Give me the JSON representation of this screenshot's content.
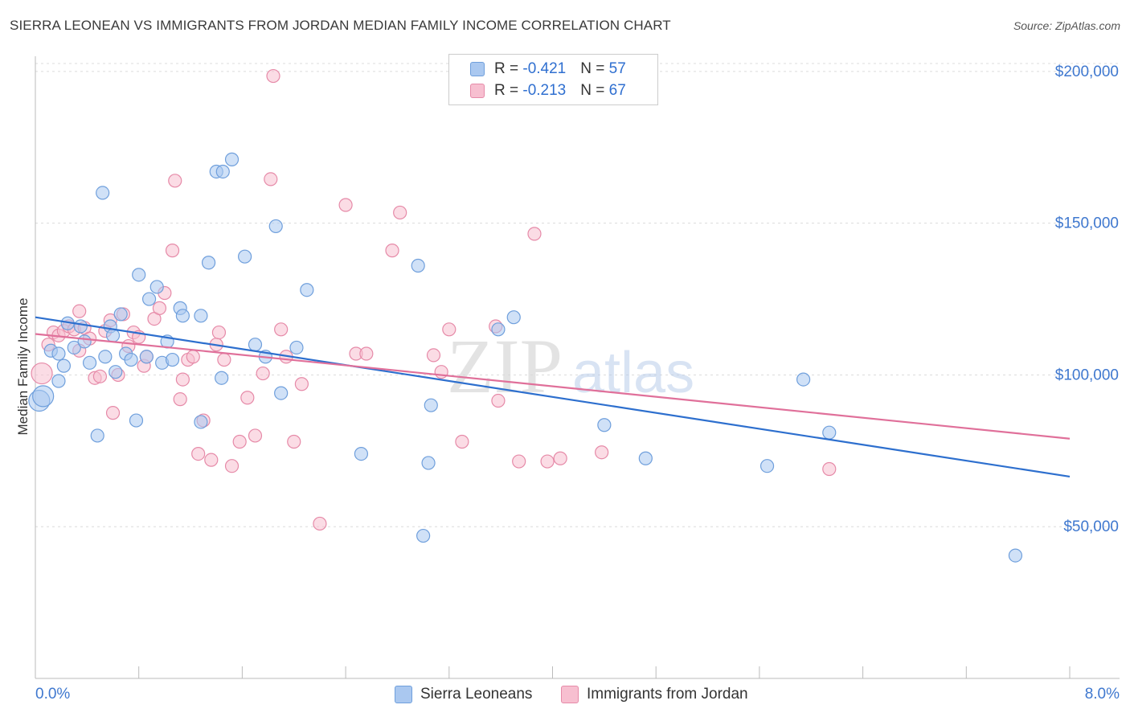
{
  "header": {
    "title": "SIERRA LEONEAN VS IMMIGRANTS FROM JORDAN MEDIAN FAMILY INCOME CORRELATION CHART",
    "source": "Source: ZipAtlas.com"
  },
  "legend": {
    "series1": {
      "r_label": "R = ",
      "r_value": "-0.421",
      "n_label": "N = ",
      "n_value": "57"
    },
    "series2": {
      "r_label": "R = ",
      "r_value": "-0.213",
      "n_label": "N = ",
      "n_value": "67"
    }
  },
  "bottom_legend": {
    "series1": "Sierra Leoneans",
    "series2": "Immigrants from Jordan"
  },
  "watermark": {
    "zip": "ZIP",
    "atlas": "atlas"
  },
  "colors": {
    "blue_fill": "#aac8f0",
    "blue_stroke": "#6f9fdc",
    "blue_line": "#2d6fce",
    "pink_fill": "#f7bfd0",
    "pink_stroke": "#e68aa8",
    "pink_line": "#e0709a",
    "axis_text": "#3f78cf"
  },
  "chart_data": {
    "type": "scatter",
    "title": "SIERRA LEONEAN VS IMMIGRANTS FROM JORDAN MEDIAN FAMILY INCOME CORRELATION CHART",
    "xlabel": "",
    "ylabel": "Median Family Income",
    "xlim": [
      0,
      8
    ],
    "ylim": [
      0,
      205000
    ],
    "x_tick_labels": [
      "0.0%",
      "8.0%"
    ],
    "y_ticks": [
      50000,
      100000,
      150000,
      200000
    ],
    "y_tick_labels": [
      "$50,000",
      "$100,000",
      "$150,000",
      "$200,000"
    ],
    "grid": true,
    "series": [
      {
        "name": "Sierra Leoneans",
        "r": -0.421,
        "n": 57,
        "trend": {
          "x0": 0,
          "y0": 119000,
          "x1": 8,
          "y1": 66500
        },
        "points": [
          [
            0.03,
            91500
          ],
          [
            0.06,
            93000
          ],
          [
            0.12,
            108000
          ],
          [
            0.18,
            107000
          ],
          [
            0.18,
            98000
          ],
          [
            0.22,
            103000
          ],
          [
            0.25,
            117000
          ],
          [
            0.3,
            109000
          ],
          [
            0.35,
            116000
          ],
          [
            0.38,
            111000
          ],
          [
            0.42,
            104000
          ],
          [
            0.48,
            80000
          ],
          [
            0.52,
            160000
          ],
          [
            0.54,
            106000
          ],
          [
            0.58,
            116000
          ],
          [
            0.62,
            101000
          ],
          [
            0.66,
            120000
          ],
          [
            0.7,
            107000
          ],
          [
            0.74,
            105000
          ],
          [
            0.78,
            85000
          ],
          [
            0.8,
            133000
          ],
          [
            0.86,
            106000
          ],
          [
            0.88,
            125000
          ],
          [
            0.94,
            129000
          ],
          [
            0.98,
            104000
          ],
          [
            1.02,
            111000
          ],
          [
            1.06,
            105000
          ],
          [
            1.12,
            122000
          ],
          [
            1.14,
            119500
          ],
          [
            1.28,
            119500
          ],
          [
            1.34,
            137000
          ],
          [
            1.4,
            167000
          ],
          [
            1.45,
            167000
          ],
          [
            1.44,
            99000
          ],
          [
            1.52,
            171000
          ],
          [
            1.62,
            139000
          ],
          [
            1.7,
            110000
          ],
          [
            1.78,
            106000
          ],
          [
            1.86,
            149000
          ],
          [
            1.9,
            94000
          ],
          [
            2.02,
            109000
          ],
          [
            2.1,
            128000
          ],
          [
            2.52,
            74000
          ],
          [
            2.96,
            136000
          ],
          [
            3.0,
            47000
          ],
          [
            3.04,
            71000
          ],
          [
            3.06,
            90000
          ],
          [
            3.58,
            115000
          ],
          [
            3.7,
            119000
          ],
          [
            4.4,
            83500
          ],
          [
            4.72,
            72500
          ],
          [
            5.66,
            70000
          ],
          [
            5.94,
            98500
          ],
          [
            6.14,
            81000
          ],
          [
            7.58,
            40500
          ],
          [
            1.28,
            84500
          ],
          [
            0.6,
            113000
          ]
        ]
      },
      {
        "name": "Immigrants from Jordan",
        "r": -0.213,
        "n": 67,
        "trend": {
          "x0": 0,
          "y0": 113500,
          "x1": 8,
          "y1": 79000
        },
        "points": [
          [
            0.05,
            100500
          ],
          [
            0.1,
            110000
          ],
          [
            0.14,
            114000
          ],
          [
            0.18,
            113000
          ],
          [
            0.22,
            114500
          ],
          [
            0.26,
            116000
          ],
          [
            0.3,
            115000
          ],
          [
            0.34,
            121000
          ],
          [
            0.38,
            115500
          ],
          [
            0.42,
            112000
          ],
          [
            0.46,
            99000
          ],
          [
            0.5,
            99500
          ],
          [
            0.54,
            114500
          ],
          [
            0.58,
            118000
          ],
          [
            0.6,
            87500
          ],
          [
            0.64,
            100000
          ],
          [
            0.68,
            120000
          ],
          [
            0.72,
            109500
          ],
          [
            0.76,
            114000
          ],
          [
            0.8,
            112500
          ],
          [
            0.84,
            103000
          ],
          [
            0.86,
            106000
          ],
          [
            0.92,
            118500
          ],
          [
            0.96,
            122000
          ],
          [
            1.0,
            127000
          ],
          [
            1.06,
            141000
          ],
          [
            1.12,
            92000
          ],
          [
            1.14,
            98500
          ],
          [
            1.18,
            105000
          ],
          [
            1.22,
            106000
          ],
          [
            1.26,
            74000
          ],
          [
            1.3,
            85000
          ],
          [
            1.36,
            72000
          ],
          [
            1.4,
            110000
          ],
          [
            1.42,
            114000
          ],
          [
            1.46,
            105000
          ],
          [
            1.52,
            70000
          ],
          [
            1.58,
            78000
          ],
          [
            1.64,
            92500
          ],
          [
            1.7,
            80000
          ],
          [
            1.76,
            100500
          ],
          [
            1.82,
            164500
          ],
          [
            1.84,
            198500
          ],
          [
            1.9,
            115000
          ],
          [
            1.94,
            106000
          ],
          [
            2.0,
            78000
          ],
          [
            2.06,
            97000
          ],
          [
            2.2,
            51000
          ],
          [
            2.4,
            156000
          ],
          [
            2.48,
            107000
          ],
          [
            2.56,
            107000
          ],
          [
            2.76,
            141000
          ],
          [
            2.82,
            153500
          ],
          [
            3.08,
            106500
          ],
          [
            3.14,
            101000
          ],
          [
            3.2,
            115000
          ],
          [
            3.3,
            78000
          ],
          [
            3.56,
            116000
          ],
          [
            3.58,
            91500
          ],
          [
            3.74,
            71500
          ],
          [
            3.86,
            146500
          ],
          [
            3.96,
            71500
          ],
          [
            4.06,
            72500
          ],
          [
            4.38,
            74500
          ],
          [
            6.14,
            69000
          ],
          [
            1.08,
            164000
          ],
          [
            0.34,
            108000
          ]
        ]
      }
    ]
  }
}
